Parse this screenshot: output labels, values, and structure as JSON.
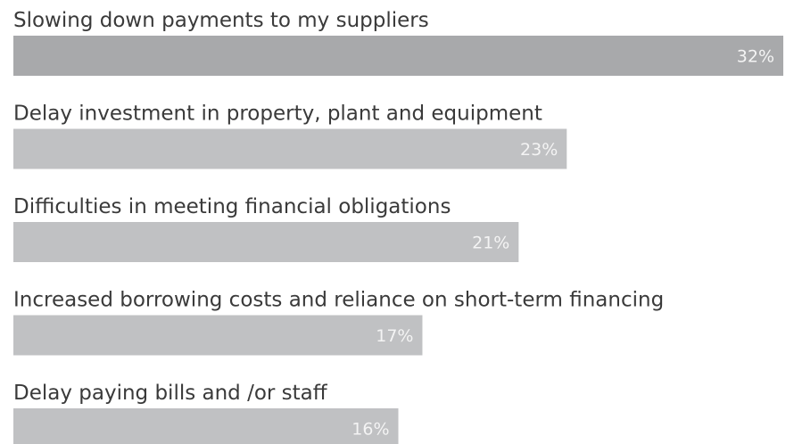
{
  "chart_data": {
    "type": "bar",
    "categories": [
      "Slowing down payments to my suppliers",
      "Delay investment in property, plant and equipment",
      "Difficulties in meeting financial obligations",
      "Increased borrowing costs and reliance on short-term financing",
      "Delay paying bills and /or staff"
    ],
    "values": [
      32,
      23,
      21,
      17,
      16
    ],
    "value_labels": [
      "32%",
      "23%",
      "21%",
      "17%",
      "16%"
    ],
    "colors": [
      "#a8a9ab",
      "#c0c1c3",
      "#c0c1c3",
      "#c0c1c3",
      "#c0c1c3"
    ]
  }
}
